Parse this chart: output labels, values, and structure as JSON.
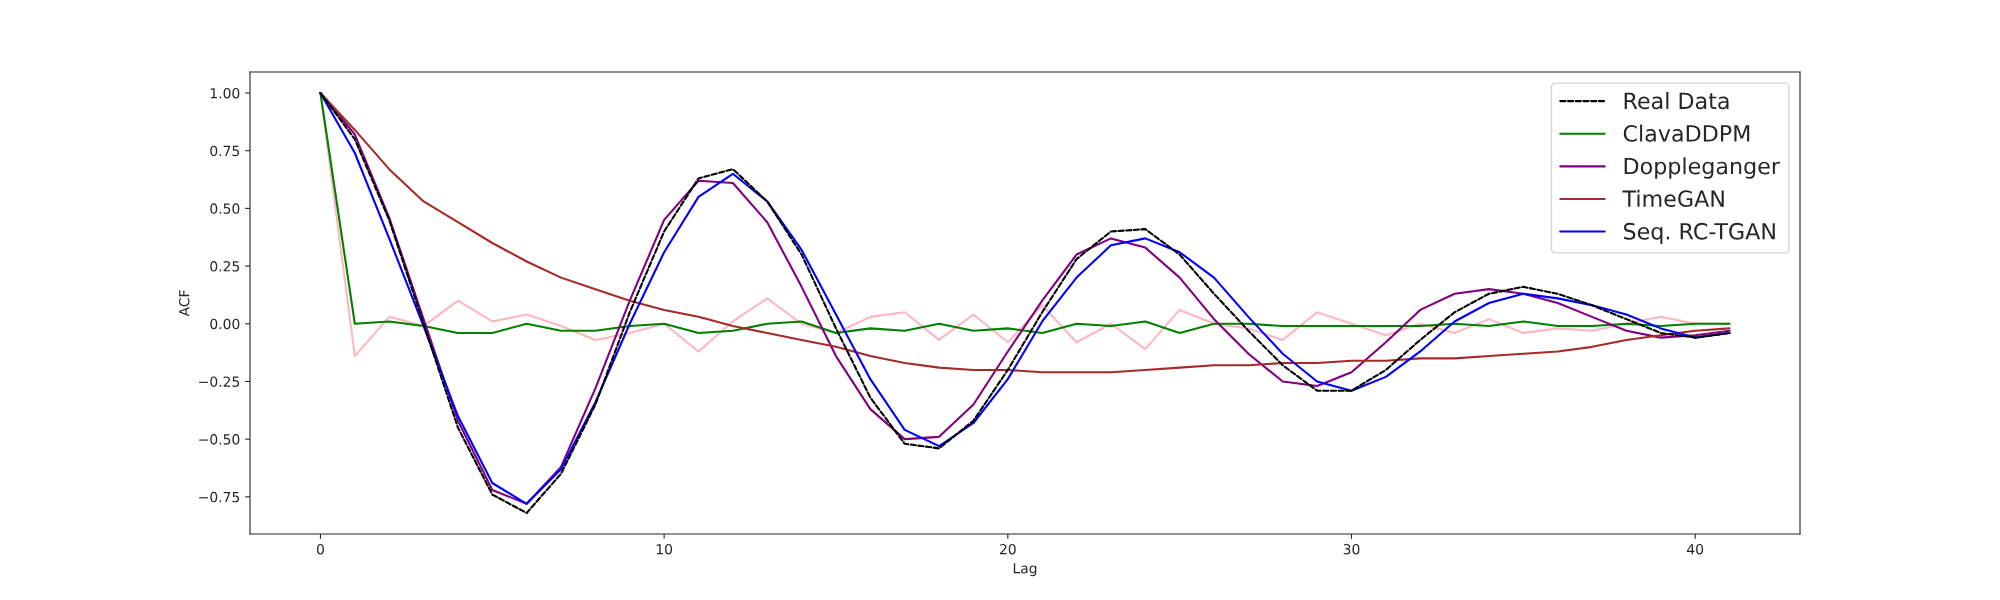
{
  "chart_data": {
    "type": "line",
    "xlabel": "Lag",
    "ylabel": "ACF",
    "x": [
      0,
      1,
      2,
      3,
      4,
      5,
      6,
      7,
      8,
      9,
      10,
      11,
      12,
      13,
      14,
      15,
      16,
      17,
      18,
      19,
      20,
      21,
      22,
      23,
      24,
      25,
      26,
      27,
      28,
      29,
      30,
      31,
      32,
      33,
      34,
      35,
      36,
      37,
      38,
      39,
      40,
      41
    ],
    "series": [
      {
        "name": "Real Data",
        "color": "#000000",
        "line_style": "dashed",
        "values": [
          1.0,
          0.8,
          0.45,
          0.0,
          -0.45,
          -0.74,
          -0.82,
          -0.65,
          -0.35,
          0.05,
          0.4,
          0.63,
          0.67,
          0.53,
          0.3,
          -0.02,
          -0.32,
          -0.52,
          -0.54,
          -0.42,
          -0.2,
          0.05,
          0.28,
          0.4,
          0.41,
          0.3,
          0.13,
          -0.03,
          -0.18,
          -0.29,
          -0.29,
          -0.2,
          -0.07,
          0.05,
          0.13,
          0.16,
          0.13,
          0.08,
          0.02,
          -0.04,
          -0.06,
          -0.04
        ]
      },
      {
        "color": "#ffb6c1",
        "line_style": "solid",
        "values": [
          1.0,
          -0.14,
          0.03,
          -0.01,
          0.1,
          0.01,
          0.04,
          -0.01,
          -0.07,
          -0.04,
          0.0,
          -0.12,
          0.01,
          0.11,
          0.0,
          -0.04,
          0.03,
          0.05,
          -0.07,
          0.04,
          -0.08,
          0.08,
          -0.08,
          0.0,
          -0.11,
          0.06,
          0.0,
          -0.02,
          -0.07,
          0.05,
          0.0,
          -0.05,
          0.0,
          -0.04,
          0.02,
          -0.04,
          -0.02,
          -0.03,
          0.0,
          0.03,
          0.0,
          0.0
        ]
      },
      {
        "name": "ClavaDDPM",
        "color": "#008000",
        "line_style": "solid",
        "values": [
          1.0,
          0.0,
          0.01,
          -0.01,
          -0.04,
          -0.04,
          0.0,
          -0.03,
          -0.03,
          -0.01,
          0.0,
          -0.04,
          -0.03,
          0.0,
          0.01,
          -0.04,
          -0.02,
          -0.03,
          0.0,
          -0.03,
          -0.02,
          -0.04,
          0.0,
          -0.01,
          0.01,
          -0.04,
          0.0,
          0.0,
          -0.01,
          -0.01,
          -0.01,
          -0.01,
          -0.01,
          0.0,
          -0.01,
          0.01,
          -0.01,
          -0.01,
          0.0,
          -0.01,
          0.0,
          0.0
        ]
      },
      {
        "name": "Doppleganger",
        "color": "#800080",
        "line_style": "solid",
        "values": [
          1.0,
          0.82,
          0.46,
          0.02,
          -0.42,
          -0.72,
          -0.78,
          -0.62,
          -0.28,
          0.1,
          0.45,
          0.62,
          0.61,
          0.44,
          0.16,
          -0.14,
          -0.37,
          -0.5,
          -0.49,
          -0.35,
          -0.12,
          0.1,
          0.3,
          0.37,
          0.33,
          0.2,
          0.02,
          -0.13,
          -0.25,
          -0.27,
          -0.21,
          -0.08,
          0.06,
          0.13,
          0.15,
          0.13,
          0.09,
          0.03,
          -0.03,
          -0.06,
          -0.05,
          -0.03
        ]
      },
      {
        "name": "TimeGAN",
        "color": "#a52a2a",
        "line_style": "solid",
        "values": [
          1.0,
          0.84,
          0.67,
          0.53,
          0.44,
          0.35,
          0.27,
          0.2,
          0.15,
          0.1,
          0.06,
          0.03,
          -0.01,
          -0.04,
          -0.07,
          -0.1,
          -0.14,
          -0.17,
          -0.19,
          -0.2,
          -0.2,
          -0.21,
          -0.21,
          -0.21,
          -0.2,
          -0.19,
          -0.18,
          -0.18,
          -0.17,
          -0.17,
          -0.16,
          -0.16,
          -0.15,
          -0.15,
          -0.14,
          -0.13,
          -0.12,
          -0.1,
          -0.07,
          -0.05,
          -0.03,
          -0.02
        ]
      },
      {
        "name": "Seq. RC-TGAN",
        "color": "#0000ff",
        "line_style": "solid",
        "values": [
          1.0,
          0.74,
          0.37,
          -0.01,
          -0.4,
          -0.69,
          -0.78,
          -0.63,
          -0.34,
          0.0,
          0.31,
          0.55,
          0.65,
          0.53,
          0.32,
          0.04,
          -0.24,
          -0.46,
          -0.53,
          -0.43,
          -0.24,
          0.01,
          0.2,
          0.34,
          0.37,
          0.31,
          0.2,
          0.03,
          -0.13,
          -0.25,
          -0.29,
          -0.23,
          -0.12,
          0.01,
          0.09,
          0.13,
          0.11,
          0.08,
          0.04,
          -0.02,
          -0.06,
          -0.04
        ]
      }
    ],
    "xlim": [
      -2.05,
      43.05
    ],
    "ylim": [
      -0.911,
      1.091
    ],
    "xticks": [
      0,
      10,
      20,
      30,
      40
    ],
    "yticks": [
      {
        "value": -0.75,
        "label": "−0.75"
      },
      {
        "value": -0.5,
        "label": "−0.50"
      },
      {
        "value": -0.25,
        "label": "−0.25"
      },
      {
        "value": 0,
        "label": "0.00"
      },
      {
        "value": 0.25,
        "label": "0.25"
      },
      {
        "value": 0.5,
        "label": "0.50"
      },
      {
        "value": 0.75,
        "label": "0.75"
      },
      {
        "value": 1,
        "label": "1.00"
      }
    ],
    "grid": false,
    "legend": "top right",
    "marker": "none"
  }
}
